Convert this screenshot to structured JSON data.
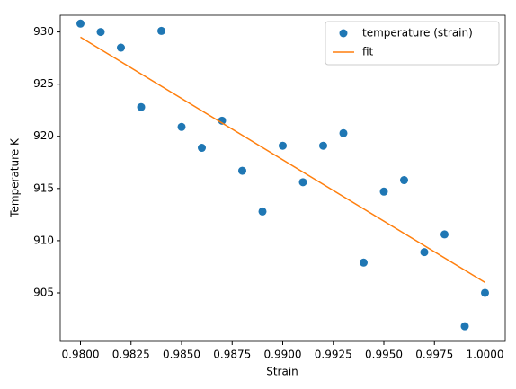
{
  "chart_data": {
    "type": "scatter",
    "xlabel": "Strain",
    "ylabel": "Temperature K",
    "xlim": [
      0.979,
      1.001
    ],
    "ylim": [
      900.35,
      931.6
    ],
    "xticks": [
      {
        "value": 0.98,
        "label": "0.9800"
      },
      {
        "value": 0.9825,
        "label": "0.9825"
      },
      {
        "value": 0.985,
        "label": "0.9850"
      },
      {
        "value": 0.9875,
        "label": "0.9875"
      },
      {
        "value": 0.99,
        "label": "0.9900"
      },
      {
        "value": 0.9925,
        "label": "0.9925"
      },
      {
        "value": 0.995,
        "label": "0.9950"
      },
      {
        "value": 0.9975,
        "label": "0.9975"
      },
      {
        "value": 1.0,
        "label": "1.0000"
      }
    ],
    "yticks": [
      905,
      910,
      915,
      920,
      925,
      930
    ],
    "legend": "upper right",
    "series": [
      {
        "name": "temperature (strain)",
        "type": "scatter",
        "color": "#1f77b4",
        "x": [
          0.98,
          0.981,
          0.982,
          0.983,
          0.984,
          0.985,
          0.986,
          0.987,
          0.988,
          0.989,
          0.99,
          0.991,
          0.992,
          0.993,
          0.994,
          0.995,
          0.996,
          0.997,
          0.998,
          0.999,
          1.0
        ],
        "values": [
          930.8,
          930.0,
          928.5,
          922.8,
          930.1,
          920.9,
          918.9,
          921.5,
          916.7,
          912.8,
          919.1,
          915.6,
          919.1,
          920.3,
          907.9,
          914.7,
          915.8,
          908.9,
          910.6,
          901.8,
          905.0
        ]
      },
      {
        "name": "fit",
        "type": "line",
        "color": "#ff7f0e",
        "x": [
          0.98,
          1.0
        ],
        "values": [
          929.5,
          906.0
        ]
      }
    ]
  }
}
